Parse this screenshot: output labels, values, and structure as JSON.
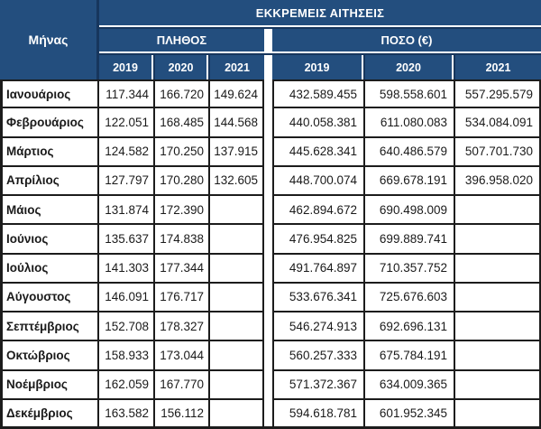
{
  "table": {
    "title": "ΕΚΚΡΕΜΕΙΣ ΑΙΤΗΣΕΙΣ",
    "month_header": "Μήνας",
    "groups": [
      {
        "label": "ΠΛΗΘΟΣ"
      },
      {
        "label": "ΠΟΣΟ (€)"
      }
    ],
    "years": [
      "2019",
      "2020",
      "2021"
    ],
    "colors": {
      "header_bg": "#234E7E",
      "header_text": "#FFFFFF",
      "header_divider_dark": "#17365D",
      "grid_border": "#1C1C1C",
      "cell_text": "#1A1A1A",
      "cell_bg": "#FFFFFF"
    },
    "rows": [
      {
        "month": "Ιανουάριος",
        "count_2019": "117.344",
        "count_2020": "166.720",
        "count_2021": "149.624",
        "amount_2019": "432.589.455",
        "amount_2020": "598.558.601",
        "amount_2021": "557.295.579"
      },
      {
        "month": "Φεβρουάριος",
        "count_2019": "122.051",
        "count_2020": "168.485",
        "count_2021": "144.568",
        "amount_2019": "440.058.381",
        "amount_2020": "611.080.083",
        "amount_2021": "534.084.091"
      },
      {
        "month": "Μάρτιος",
        "count_2019": "124.582",
        "count_2020": "170.250",
        "count_2021": "137.915",
        "amount_2019": "445.628.341",
        "amount_2020": "640.486.579",
        "amount_2021": "507.701.730"
      },
      {
        "month": "Απρίλιος",
        "count_2019": "127.797",
        "count_2020": "170.280",
        "count_2021": "132.605",
        "amount_2019": "448.700.074",
        "amount_2020": "669.678.191",
        "amount_2021": "396.958.020"
      },
      {
        "month": "Μάιος",
        "count_2019": "131.874",
        "count_2020": "172.390",
        "count_2021": "",
        "amount_2019": "462.894.672",
        "amount_2020": "690.498.009",
        "amount_2021": ""
      },
      {
        "month": "Ιούνιος",
        "count_2019": "135.637",
        "count_2020": "174.838",
        "count_2021": "",
        "amount_2019": "476.954.825",
        "amount_2020": "699.889.741",
        "amount_2021": ""
      },
      {
        "month": "Ιούλιος",
        "count_2019": "141.303",
        "count_2020": "177.344",
        "count_2021": "",
        "amount_2019": "491.764.897",
        "amount_2020": "710.357.752",
        "amount_2021": ""
      },
      {
        "month": "Αύγουστος",
        "count_2019": "146.091",
        "count_2020": "176.717",
        "count_2021": "",
        "amount_2019": "533.676.341",
        "amount_2020": "725.676.603",
        "amount_2021": ""
      },
      {
        "month": "Σεπτέμβριος",
        "count_2019": "152.708",
        "count_2020": "178.327",
        "count_2021": "",
        "amount_2019": "546.274.913",
        "amount_2020": "692.696.131",
        "amount_2021": ""
      },
      {
        "month": "Οκτώβριος",
        "count_2019": "158.933",
        "count_2020": "173.044",
        "count_2021": "",
        "amount_2019": "560.257.333",
        "amount_2020": "675.784.191",
        "amount_2021": ""
      },
      {
        "month": "Νοέμβριος",
        "count_2019": "162.059",
        "count_2020": "167.770",
        "count_2021": "",
        "amount_2019": "571.372.367",
        "amount_2020": "634.009.365",
        "amount_2021": ""
      },
      {
        "month": "Δεκέμβριος",
        "count_2019": "163.582",
        "count_2020": "156.112",
        "count_2021": "",
        "amount_2019": "594.618.781",
        "amount_2020": "601.952.345",
        "amount_2021": ""
      }
    ]
  }
}
